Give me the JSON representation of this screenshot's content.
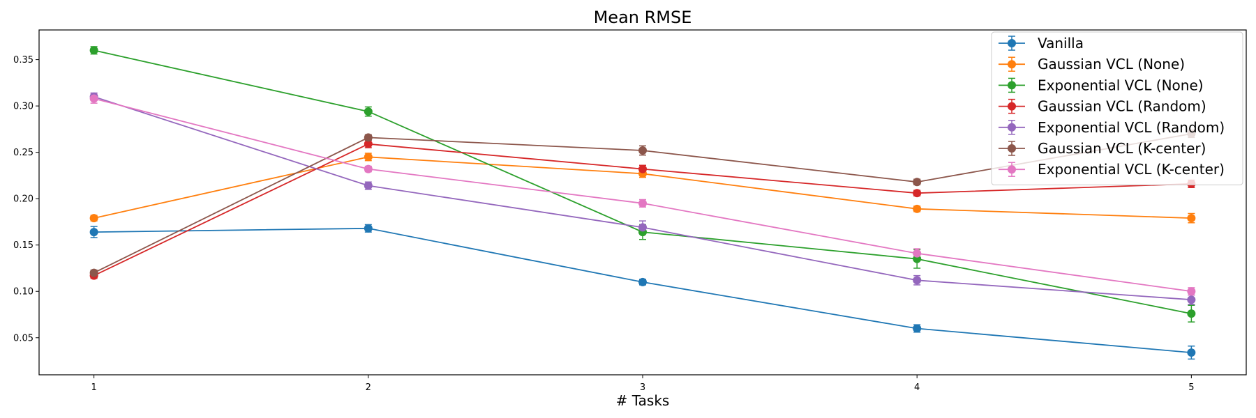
{
  "chart_data": {
    "type": "line",
    "title": "Mean RMSE",
    "xlabel": "# Tasks",
    "ylabel": "",
    "x": [
      1,
      2,
      3,
      4,
      5
    ],
    "xlim": [
      0.8,
      5.2
    ],
    "ylim": [
      0.01,
      0.382
    ],
    "yticks": [
      0.05,
      0.1,
      0.15,
      0.2,
      0.25,
      0.3,
      0.35
    ],
    "ytick_labels": [
      "0.05",
      "0.10",
      "0.15",
      "0.20",
      "0.25",
      "0.30",
      "0.35"
    ],
    "xtick_labels": [
      "1",
      "2",
      "3",
      "4",
      "5"
    ],
    "grid": false,
    "legend_position": "top-right",
    "error_bars": true,
    "series": [
      {
        "name": "Vanilla",
        "color": "#1f77b4",
        "values": [
          0.164,
          0.168,
          0.11,
          0.06,
          0.034
        ],
        "errors": [
          0.006,
          0.004,
          0.003,
          0.004,
          0.007
        ]
      },
      {
        "name": "Gaussian VCL (None)",
        "color": "#ff7f0e",
        "values": [
          0.179,
          0.245,
          0.227,
          0.189,
          0.179
        ],
        "errors": [
          0.003,
          0.004,
          0.004,
          0.003,
          0.005
        ]
      },
      {
        "name": "Exponential VCL (None)",
        "color": "#2ca02c",
        "values": [
          0.36,
          0.294,
          0.164,
          0.135,
          0.076
        ],
        "errors": [
          0.004,
          0.005,
          0.008,
          0.01,
          0.009
        ]
      },
      {
        "name": "Gaussian VCL (Random)",
        "color": "#d62728",
        "values": [
          0.117,
          0.259,
          0.232,
          0.206,
          0.216
        ],
        "errors": [
          0.003,
          0.004,
          0.004,
          0.003,
          0.004
        ]
      },
      {
        "name": "Exponential VCL (Random)",
        "color": "#9467bd",
        "values": [
          0.31,
          0.214,
          0.169,
          0.112,
          0.091
        ],
        "errors": [
          0.004,
          0.004,
          0.007,
          0.005,
          0.005
        ]
      },
      {
        "name": "Gaussian VCL (K-center)",
        "color": "#8c564b",
        "values": [
          0.12,
          0.266,
          0.252,
          0.218,
          0.27
        ],
        "errors": [
          0.003,
          0.003,
          0.005,
          0.003,
          0.004
        ]
      },
      {
        "name": "Exponential VCL (K-center)",
        "color": "#e377c2",
        "values": [
          0.308,
          0.232,
          0.195,
          0.141,
          0.1
        ],
        "errors": [
          0.005,
          0.003,
          0.004,
          0.005,
          0.004
        ]
      }
    ]
  }
}
